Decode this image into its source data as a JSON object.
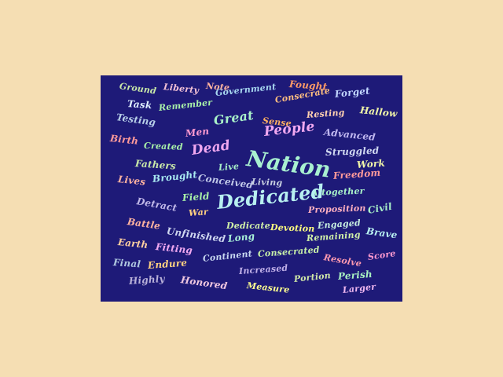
{
  "palette": {
    "page_background": "#f5deb3",
    "cloud_background": "#1e1a78"
  },
  "words": [
    {
      "text": "Ground",
      "color": "#c9e8a8"
    },
    {
      "text": "Liberty",
      "color": "#f3c2d6"
    },
    {
      "text": "Note",
      "color": "#ffb3a0"
    },
    {
      "text": "Fought",
      "color": "#ff9a66"
    },
    {
      "text": "Government",
      "color": "#a8d8f0"
    },
    {
      "text": "Forget",
      "color": "#c2d6ff"
    },
    {
      "text": "Task",
      "color": "#e0f0ff"
    },
    {
      "text": "Remember",
      "color": "#a8f0a8"
    },
    {
      "text": "Consecrate",
      "color": "#ffbf80"
    },
    {
      "text": "Hallow",
      "color": "#f0f5a8"
    },
    {
      "text": "Testing",
      "color": "#b8d0e8"
    },
    {
      "text": "Great",
      "color": "#a8f0c8"
    },
    {
      "text": "Sense",
      "color": "#ffb060"
    },
    {
      "text": "Resting",
      "color": "#ffd0b0"
    },
    {
      "text": "Men",
      "color": "#ff9ad0"
    },
    {
      "text": "People",
      "color": "#f0a8f0"
    },
    {
      "text": "Advanced",
      "color": "#c0b8f0"
    },
    {
      "text": "Birth",
      "color": "#ff9a9a"
    },
    {
      "text": "Created",
      "color": "#a8f0a8"
    },
    {
      "text": "Dead",
      "color": "#f0a8f0"
    },
    {
      "text": "Struggled",
      "color": "#d0d8f0"
    },
    {
      "text": "Nation",
      "color": "#a8f0d0"
    },
    {
      "text": "Fathers",
      "color": "#c8e8a8"
    },
    {
      "text": "Live",
      "color": "#a8f0c8"
    },
    {
      "text": "Work",
      "color": "#f0f5a8"
    },
    {
      "text": "Lives",
      "color": "#ffb3a0"
    },
    {
      "text": "Brought",
      "color": "#a8e8f0"
    },
    {
      "text": "Conceived",
      "color": "#c0c8e8"
    },
    {
      "text": "Living",
      "color": "#c8d0e0"
    },
    {
      "text": "Freedom",
      "color": "#ff9a9a"
    },
    {
      "text": "Field",
      "color": "#a8f0a8"
    },
    {
      "text": "Altogether",
      "color": "#a8f0c8"
    },
    {
      "text": "Detract",
      "color": "#c0b8e8"
    },
    {
      "text": "Dedicated",
      "color": "#b8f0f0"
    },
    {
      "text": "War",
      "color": "#ffd080"
    },
    {
      "text": "Proposition",
      "color": "#ffb0c0"
    },
    {
      "text": "Civil",
      "color": "#a8f0c8"
    },
    {
      "text": "Battle",
      "color": "#ffb3a0"
    },
    {
      "text": "Dedicate",
      "color": "#d0f0a8"
    },
    {
      "text": "Devotion",
      "color": "#ffff80"
    },
    {
      "text": "Engaged",
      "color": "#c8f0e0"
    },
    {
      "text": "Brave",
      "color": "#b8f0f0"
    },
    {
      "text": "Unfinished",
      "color": "#d0d8f0"
    },
    {
      "text": "Long",
      "color": "#a8f0d8"
    },
    {
      "text": "Remaining",
      "color": "#d0f0a8"
    },
    {
      "text": "Earth",
      "color": "#ffd0a0"
    },
    {
      "text": "Fitting",
      "color": "#f0a8f0"
    },
    {
      "text": "Consecrated",
      "color": "#c8f0a8"
    },
    {
      "text": "Resolve",
      "color": "#ff9ab0"
    },
    {
      "text": "Score",
      "color": "#ff9ad0"
    },
    {
      "text": "Final",
      "color": "#b0c8e0"
    },
    {
      "text": "Endure",
      "color": "#ffd080"
    },
    {
      "text": "Continent",
      "color": "#c8d8f0"
    },
    {
      "text": "Increased",
      "color": "#c0b0e8"
    },
    {
      "text": "Perish",
      "color": "#a8f0c0"
    },
    {
      "text": "Highly",
      "color": "#b8b0d8"
    },
    {
      "text": "Honored",
      "color": "#f0c8e0"
    },
    {
      "text": "Measure",
      "color": "#ffff90"
    },
    {
      "text": "Portion",
      "color": "#d0e8a8"
    },
    {
      "text": "Larger",
      "color": "#f0b8f0"
    }
  ]
}
